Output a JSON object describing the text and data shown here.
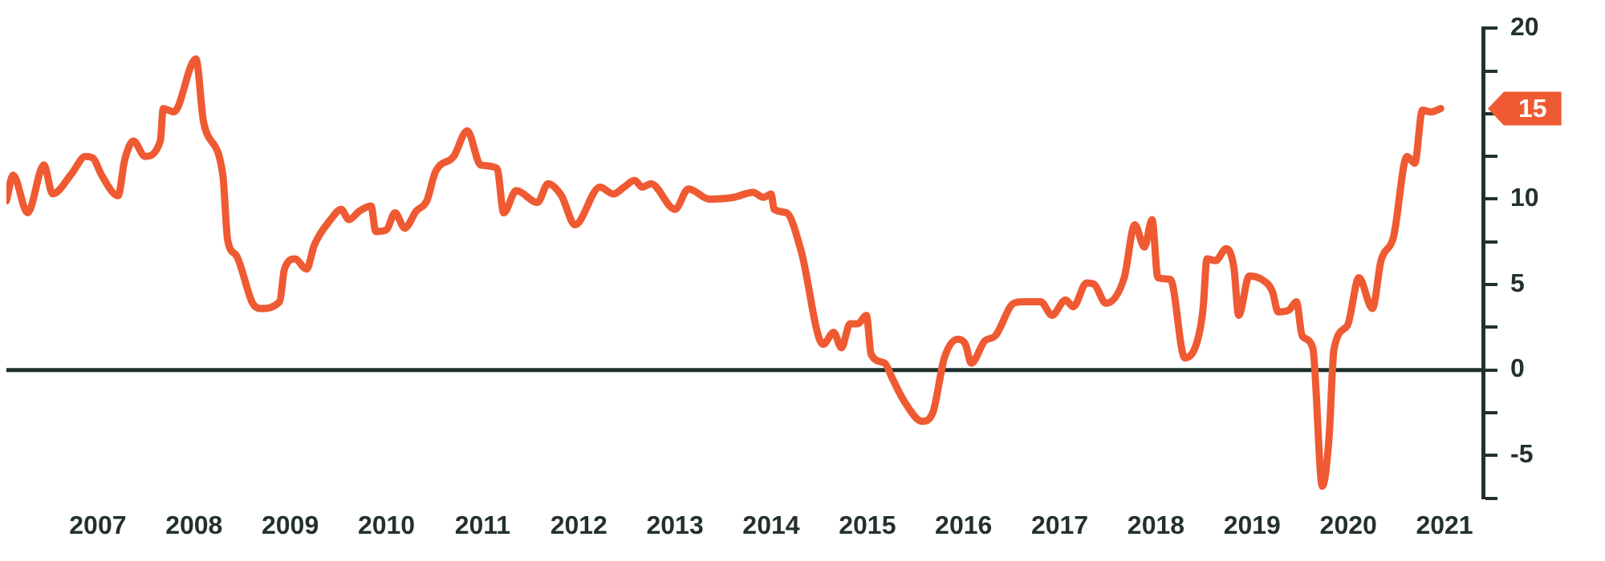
{
  "chart_data": {
    "type": "line",
    "x": [
      2006.05,
      2006.12,
      2006.27,
      2006.44,
      2006.53,
      2006.73,
      2006.87,
      2006.95,
      2007.04,
      2007.21,
      2007.28,
      2007.37,
      2007.49,
      2007.65,
      2007.68,
      2007.79,
      2008.02,
      2008.1,
      2008.3,
      2008.35,
      2008.44,
      2008.61,
      2008.69,
      2008.89,
      2008.94,
      2009.05,
      2009.17,
      2009.25,
      2009.42,
      2009.53,
      2009.61,
      2009.72,
      2009.84,
      2009.89,
      2010.0,
      2010.09,
      2010.19,
      2010.31,
      2010.42,
      2010.51,
      2010.7,
      2010.84,
      2010.98,
      2011.15,
      2011.22,
      2011.35,
      2011.57,
      2011.68,
      2011.82,
      2011.96,
      2012.22,
      2012.36,
      2012.47,
      2012.58,
      2012.66,
      2012.75,
      2013.0,
      2013.14,
      2013.36,
      2013.61,
      2013.81,
      2013.92,
      2014.0,
      2014.03,
      2014.16,
      2014.31,
      2014.54,
      2014.65,
      2014.73,
      2014.82,
      2014.9,
      2014.99,
      2015.04,
      2015.18,
      2015.26,
      2015.38,
      2015.57,
      2015.68,
      2015.8,
      2015.94,
      2016.02,
      2016.08,
      2016.22,
      2016.33,
      2016.52,
      2016.64,
      2016.8,
      2016.92,
      2017.06,
      2017.14,
      2017.28,
      2017.36,
      2017.48,
      2017.67,
      2017.78,
      2017.88,
      2017.96,
      2018.02,
      2018.15,
      2018.3,
      2018.43,
      2018.49,
      2018.53,
      2018.62,
      2018.73,
      2018.81,
      2018.86,
      2018.97,
      2019.1,
      2019.21,
      2019.27,
      2019.38,
      2019.46,
      2019.52,
      2019.63,
      2019.73,
      2019.8,
      2019.85,
      2019.99,
      2020.11,
      2020.25,
      2020.34,
      2020.47,
      2020.61,
      2020.69,
      2020.77,
      2020.86,
      2020.96
    ],
    "series": [
      {
        "color": "#ef5a32",
        "values": [
          9.9,
          11.4,
          9.2,
          12.0,
          10.3,
          11.5,
          12.5,
          12.4,
          11.4,
          10.2,
          12.3,
          13.4,
          12.5,
          13.4,
          15.3,
          15.1,
          18.2,
          14.5,
          11.4,
          7.6,
          6.7,
          3.9,
          3.6,
          4.0,
          5.9,
          6.5,
          5.9,
          7.3,
          8.8,
          9.4,
          8.8,
          9.3,
          9.6,
          8.1,
          8.2,
          9.2,
          8.3,
          9.3,
          9.9,
          11.6,
          12.5,
          14.0,
          12.0,
          11.8,
          9.2,
          10.5,
          9.8,
          10.9,
          10.2,
          8.5,
          10.7,
          10.3,
          10.7,
          11.1,
          10.7,
          10.9,
          9.4,
          10.6,
          10.0,
          10.1,
          10.4,
          10.1,
          10.3,
          9.4,
          9.2,
          7.0,
          1.5,
          2.2,
          1.3,
          2.7,
          2.7,
          3.2,
          0.9,
          0.4,
          -0.5,
          -1.8,
          -3.0,
          -2.5,
          0.7,
          1.8,
          1.5,
          0.4,
          1.7,
          2.0,
          3.9,
          4.0,
          4.0,
          3.2,
          4.1,
          3.7,
          5.1,
          5.0,
          3.9,
          5.4,
          8.5,
          7.2,
          8.8,
          5.4,
          5.3,
          0.7,
          1.7,
          3.6,
          6.5,
          6.4,
          7.1,
          6.0,
          3.2,
          5.5,
          5.3,
          4.6,
          3.4,
          3.5,
          4.0,
          2.0,
          1.3,
          -6.8,
          -3.9,
          1.2,
          2.6,
          5.4,
          3.6,
          6.4,
          7.8,
          12.5,
          12.1,
          15.2,
          15.1,
          15.3
        ]
      }
    ],
    "xlim": [
      2006.05,
      2021.4
    ],
    "xticks": [
      2007,
      2008,
      2009,
      2010,
      2011,
      2012,
      2013,
      2014,
      2015,
      2016,
      2017,
      2018,
      2019,
      2020,
      2021
    ],
    "ylim": [
      -7.5,
      20
    ],
    "yticks": [
      20,
      {
        "value": 17.5,
        "label": null
      },
      {
        "value": 15,
        "label": null
      },
      {
        "value": 12.5,
        "label": null
      },
      10,
      {
        "value": 7.5,
        "label": null
      },
      5,
      {
        "value": 2.5,
        "label": null
      },
      0,
      {
        "value": -2.5,
        "label": null
      },
      -5,
      {
        "value": -7.5,
        "label": null
      }
    ],
    "ref_lines": [
      {
        "axis": "y",
        "value": 0,
        "color": "#1f302c"
      }
    ],
    "annotations": [
      "15"
    ],
    "grid": false,
    "legend": false,
    "marker": "none",
    "line_style": "solid"
  }
}
